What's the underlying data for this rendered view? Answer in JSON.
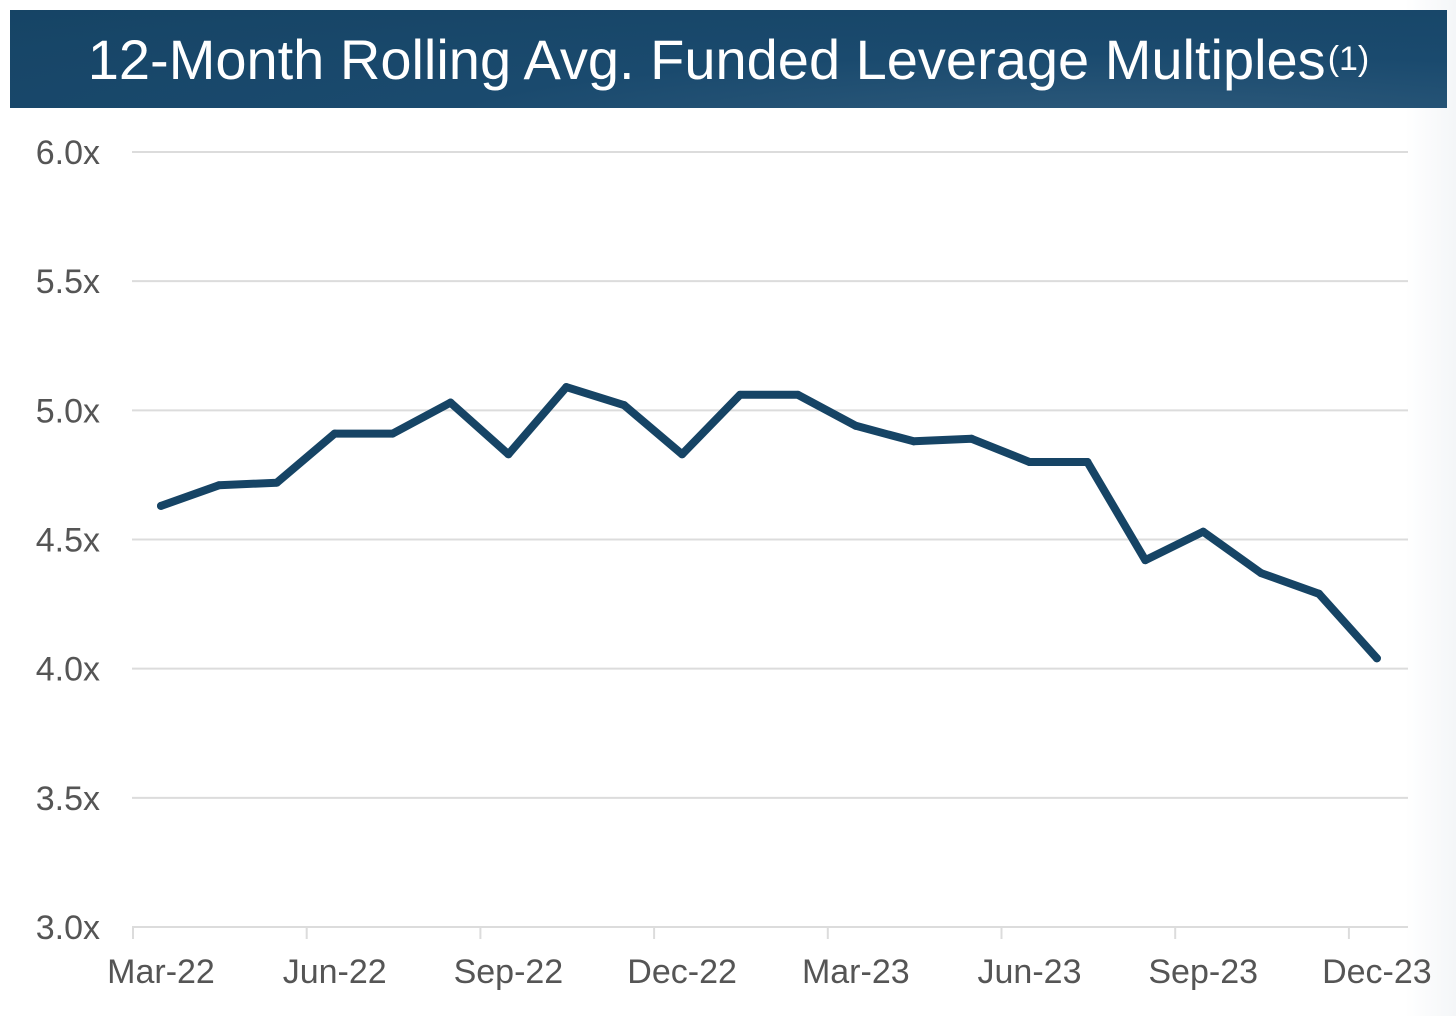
{
  "title": {
    "main": "12-Month Rolling Avg. Funded Leverage Multiples",
    "superscript": "(1)"
  },
  "colors": {
    "title_bar": "#1a4a6e",
    "line": "#164465",
    "grid": "#dcdcdc",
    "tick_text": "#555555"
  },
  "chart_data": {
    "type": "line",
    "title": "12-Month Rolling Avg. Funded Leverage Multiples(1)",
    "xlabel": "",
    "ylabel": "",
    "ylim": [
      3.0,
      6.0
    ],
    "y_ticks": [
      "3.0x",
      "3.5x",
      "4.0x",
      "4.5x",
      "5.0x",
      "5.5x",
      "6.0x"
    ],
    "y_tick_values": [
      3.0,
      3.5,
      4.0,
      4.5,
      5.0,
      5.5,
      6.0
    ],
    "x_tick_labels": [
      "Mar-22",
      "Jun-22",
      "Sep-22",
      "Dec-22",
      "Mar-23",
      "Jun-23",
      "Sep-23",
      "Dec-23"
    ],
    "x": [
      "Mar-22",
      "Apr-22",
      "May-22",
      "Jun-22",
      "Jul-22",
      "Aug-22",
      "Sep-22",
      "Oct-22",
      "Nov-22",
      "Dec-22",
      "Jan-23",
      "Feb-23",
      "Mar-23",
      "Apr-23",
      "May-23",
      "Jun-23",
      "Jul-23",
      "Aug-23",
      "Sep-23",
      "Oct-23",
      "Nov-23",
      "Dec-23"
    ],
    "series": [
      {
        "values": [
          4.63,
          4.71,
          4.72,
          4.91,
          4.91,
          5.03,
          4.83,
          5.09,
          5.02,
          4.83,
          5.06,
          5.06,
          4.94,
          4.88,
          4.89,
          4.8,
          4.8,
          4.42,
          4.53,
          4.37,
          4.29,
          4.04
        ]
      }
    ],
    "grid": true,
    "legend": "none"
  }
}
